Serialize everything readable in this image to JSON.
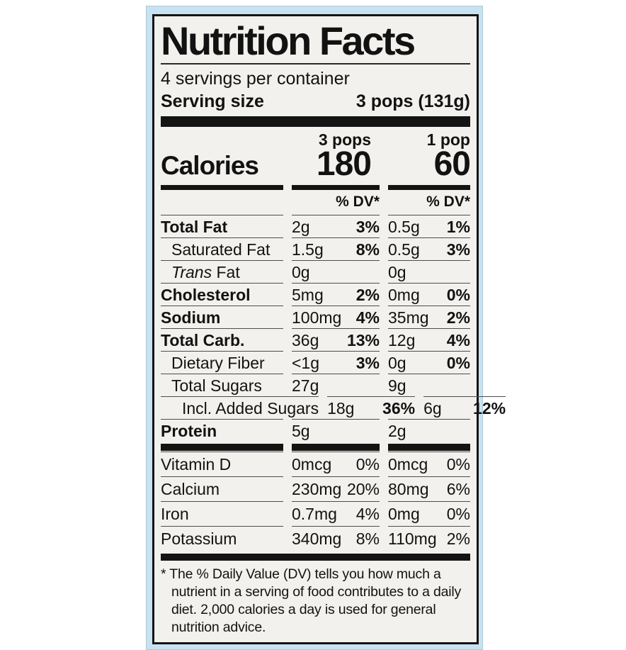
{
  "label": {
    "title": "Nutrition Facts",
    "servings_per_container": "4 servings per container",
    "serving_size_label": "Serving size",
    "serving_size_value": "3 pops (131g)",
    "calories_label": "Calories",
    "columns": [
      {
        "header": "3 pops",
        "calories": "180",
        "dv_header": "% DV*"
      },
      {
        "header": "1 pop",
        "calories": "60",
        "dv_header": "% DV*"
      }
    ],
    "nutrient_rows": [
      {
        "name": "Total Fat",
        "bold": true,
        "indent": 0,
        "italic_prefix": "",
        "cols": [
          {
            "amount": "2g",
            "pct": "3%"
          },
          {
            "amount": "0.5g",
            "pct": "1%"
          }
        ]
      },
      {
        "name": "Saturated Fat",
        "bold": false,
        "indent": 1,
        "italic_prefix": "",
        "cols": [
          {
            "amount": "1.5g",
            "pct": "8%"
          },
          {
            "amount": "0.5g",
            "pct": "3%"
          }
        ]
      },
      {
        "name": " Fat",
        "bold": false,
        "indent": 1,
        "italic_prefix": "Trans",
        "cols": [
          {
            "amount": "0g",
            "pct": ""
          },
          {
            "amount": "0g",
            "pct": ""
          }
        ]
      },
      {
        "name": "Cholesterol",
        "bold": true,
        "indent": 0,
        "italic_prefix": "",
        "cols": [
          {
            "amount": "5mg",
            "pct": "2%"
          },
          {
            "amount": "0mg",
            "pct": "0%"
          }
        ]
      },
      {
        "name": "Sodium",
        "bold": true,
        "indent": 0,
        "italic_prefix": "",
        "cols": [
          {
            "amount": "100mg",
            "pct": "4%"
          },
          {
            "amount": "35mg",
            "pct": "2%"
          }
        ]
      },
      {
        "name": "Total Carb.",
        "bold": true,
        "indent": 0,
        "italic_prefix": "",
        "cols": [
          {
            "amount": "36g",
            "pct": "13%"
          },
          {
            "amount": "12g",
            "pct": "4%"
          }
        ]
      },
      {
        "name": "Dietary Fiber",
        "bold": false,
        "indent": 1,
        "italic_prefix": "",
        "cols": [
          {
            "amount": "<1g",
            "pct": "3%"
          },
          {
            "amount": "0g",
            "pct": "0%"
          }
        ]
      },
      {
        "name": "Total Sugars",
        "bold": false,
        "indent": 1,
        "italic_prefix": "",
        "cols": [
          {
            "amount": "27g",
            "pct": ""
          },
          {
            "amount": "9g",
            "pct": ""
          }
        ]
      },
      {
        "name": "Incl. Added Sugars",
        "bold": false,
        "indent": 2,
        "italic_prefix": "",
        "cols": [
          {
            "amount": "18g",
            "pct": "36%"
          },
          {
            "amount": "6g",
            "pct": "12%"
          }
        ]
      },
      {
        "name": "Protein",
        "bold": true,
        "indent": 0,
        "italic_prefix": "",
        "cols": [
          {
            "amount": "5g",
            "pct": ""
          },
          {
            "amount": "2g",
            "pct": ""
          }
        ]
      }
    ],
    "vitamin_rows": [
      {
        "name": "Vitamin D",
        "cols": [
          {
            "amount": "0mcg",
            "pct": "0%"
          },
          {
            "amount": "0mcg",
            "pct": "0%"
          }
        ]
      },
      {
        "name": "Calcium",
        "cols": [
          {
            "amount": "230mg",
            "pct": "20%"
          },
          {
            "amount": "80mg",
            "pct": "6%"
          }
        ]
      },
      {
        "name": "Iron",
        "cols": [
          {
            "amount": "0.7mg",
            "pct": "4%"
          },
          {
            "amount": "0mg",
            "pct": "0%"
          }
        ]
      },
      {
        "name": "Potassium",
        "cols": [
          {
            "amount": "340mg",
            "pct": "8%"
          },
          {
            "amount": "110mg",
            "pct": "2%"
          }
        ]
      }
    ],
    "footnote": "* The % Daily Value (DV) tells you how much a nutrient in a serving of food contributes to a daily diet. 2,000 calories a day is used for general nutrition advice.",
    "colors": {
      "package_background": "#c7e3f1",
      "label_background": "#f2f1ee",
      "ink": "#141414"
    }
  }
}
